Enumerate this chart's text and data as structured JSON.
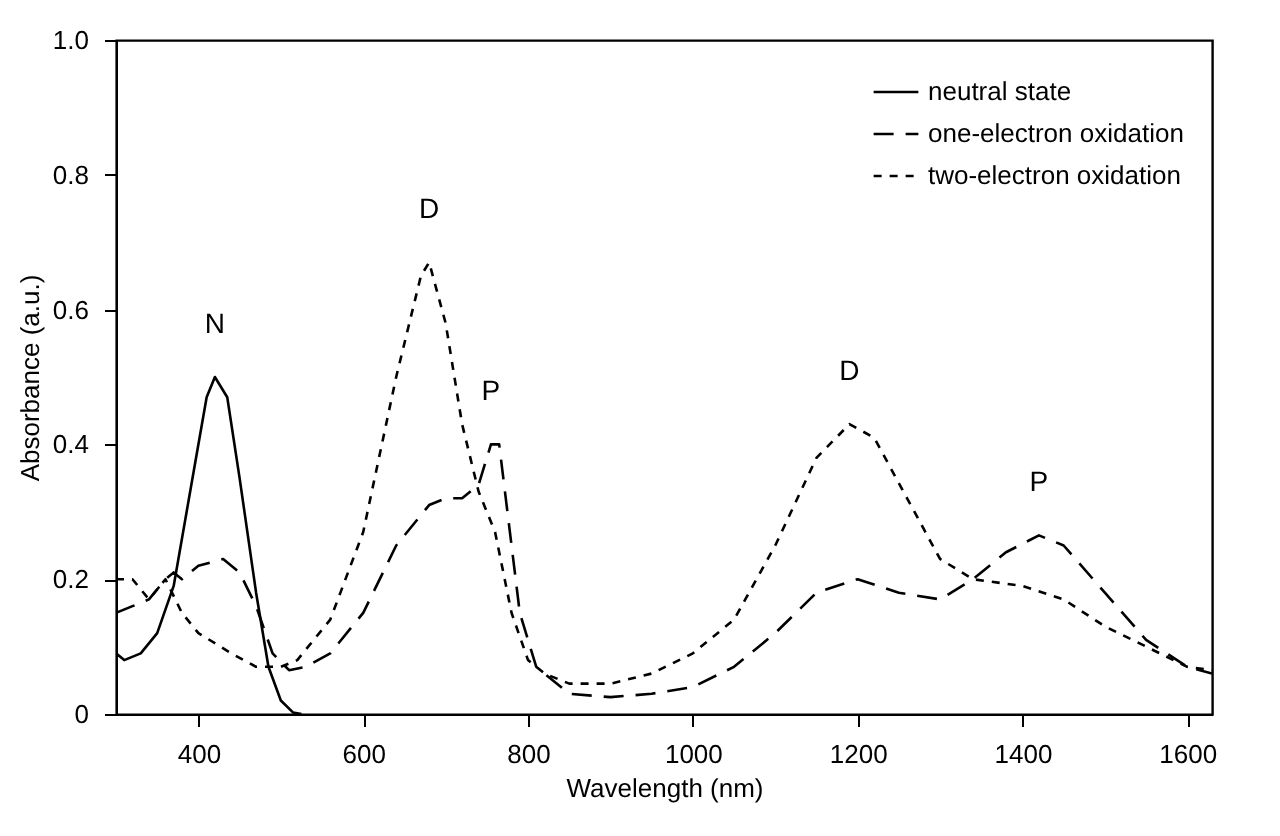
{
  "chart_data": {
    "type": "line",
    "xlabel": "Wavelength (nm)",
    "ylabel": "Absorbance (a.u.)",
    "xlim": [
      300,
      1630
    ],
    "xticks": [
      400,
      600,
      800,
      1000,
      1200,
      1400,
      1600
    ],
    "ylim": [
      0,
      1.0
    ],
    "yticks": [
      0,
      {
        "value": 0.2,
        "label": "0.2"
      },
      {
        "value": 0.4,
        "label": "0.4"
      },
      {
        "value": 0.6,
        "label": "0.6"
      },
      {
        "value": 0.8,
        "label": "0.8"
      },
      {
        "value": 1.0,
        "label": "1.0"
      }
    ],
    "grid": false,
    "legend": "top right",
    "marker": "none",
    "annotations": [
      {
        "text": "N",
        "x": 420,
        "y": 0.5
      },
      {
        "text": "D",
        "x": 680,
        "y": 0.67
      },
      {
        "text": "P",
        "x": 755,
        "y": 0.4
      },
      {
        "text": "D",
        "x": 1190,
        "y": 0.43
      },
      {
        "text": "P",
        "x": 1420,
        "y": 0.265
      }
    ],
    "series": [
      {
        "name": "neutral state",
        "color": "#000000",
        "line_style": "solid",
        "x": [
          300,
          310,
          330,
          350,
          370,
          390,
          410,
          420,
          435,
          450,
          470,
          485,
          500,
          515,
          525
        ],
        "values": [
          0.09,
          0.08,
          0.09,
          0.12,
          0.19,
          0.33,
          0.47,
          0.5,
          0.47,
          0.35,
          0.18,
          0.07,
          0.02,
          0.002,
          0.0
        ]
      },
      {
        "name": "one-electron oxidation",
        "color": "#000000",
        "line_style": "dashed",
        "x": [
          300,
          320,
          340,
          360,
          370,
          380,
          400,
          430,
          450,
          470,
          490,
          510,
          530,
          560,
          600,
          640,
          680,
          700,
          720,
          740,
          755,
          765,
          775,
          790,
          810,
          850,
          900,
          950,
          1000,
          1050,
          1100,
          1150,
          1200,
          1250,
          1300,
          1340,
          1380,
          1420,
          1450,
          1500,
          1550,
          1600,
          1630
        ],
        "values": [
          0.15,
          0.16,
          0.17,
          0.2,
          0.21,
          0.2,
          0.22,
          0.23,
          0.21,
          0.16,
          0.09,
          0.065,
          0.07,
          0.09,
          0.15,
          0.25,
          0.31,
          0.32,
          0.32,
          0.34,
          0.4,
          0.4,
          0.3,
          0.15,
          0.07,
          0.03,
          0.025,
          0.03,
          0.04,
          0.07,
          0.12,
          0.18,
          0.2,
          0.18,
          0.17,
          0.2,
          0.24,
          0.265,
          0.25,
          0.18,
          0.11,
          0.07,
          0.06
        ]
      },
      {
        "name": "two-electron oxidation",
        "color": "#000000",
        "line_style": "dotted",
        "x": [
          300,
          320,
          340,
          360,
          380,
          400,
          440,
          470,
          500,
          520,
          560,
          600,
          640,
          670,
          680,
          700,
          720,
          740,
          760,
          780,
          800,
          820,
          850,
          900,
          950,
          1000,
          1050,
          1100,
          1150,
          1190,
          1220,
          1260,
          1300,
          1340,
          1400,
          1450,
          1500,
          1550,
          1600,
          1630
        ],
        "values": [
          0.2,
          0.2,
          0.17,
          0.2,
          0.15,
          0.12,
          0.09,
          0.07,
          0.07,
          0.08,
          0.14,
          0.27,
          0.5,
          0.65,
          0.67,
          0.58,
          0.43,
          0.33,
          0.27,
          0.15,
          0.08,
          0.06,
          0.045,
          0.045,
          0.06,
          0.09,
          0.14,
          0.25,
          0.38,
          0.43,
          0.41,
          0.32,
          0.23,
          0.2,
          0.19,
          0.17,
          0.13,
          0.1,
          0.07,
          0.065
        ]
      }
    ]
  }
}
